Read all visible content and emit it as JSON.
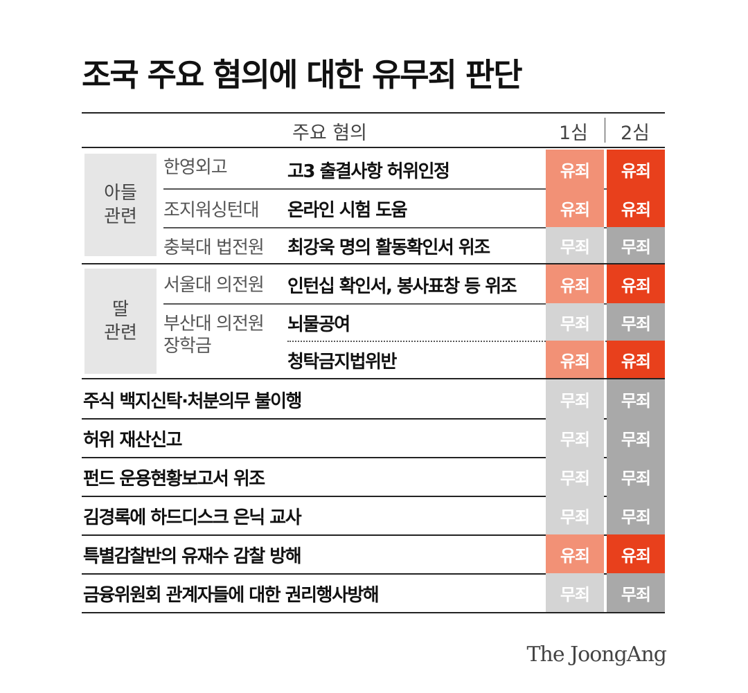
{
  "title": "조국 주요 혐의에 대한 유무죄 판단",
  "header": {
    "charges": "주요 혐의",
    "first_trial": "1심",
    "second_trial": "2심"
  },
  "groups": [
    {
      "label": "아들\n관련"
    },
    {
      "label": "딸\n관련"
    }
  ],
  "rows": [
    {
      "sub": "한영외고",
      "item": "고3 출결사항 허위인정",
      "first": "유죄",
      "second": "유죄"
    },
    {
      "sub": "조지워싱턴대",
      "item": "온라인 시험 도움",
      "first": "유죄",
      "second": "유죄"
    },
    {
      "sub": "충북대 법전원",
      "item": "최강욱 명의 활동확인서 위조",
      "first": "무죄",
      "second": "무죄"
    },
    {
      "sub": "서울대 의전원",
      "item": "인턴십 확인서, 봉사표창 등 위조",
      "first": "유죄",
      "second": "유죄"
    },
    {
      "sub": "부산대 의전원\n장학금",
      "item": "뇌물공여",
      "first": "무죄",
      "second": "무죄"
    },
    {
      "sub": "",
      "item": "청탁금지법위반",
      "first": "유죄",
      "second": "유죄"
    },
    {
      "sub": "",
      "item": "주식 백지신탁·처분의무 불이행",
      "first": "무죄",
      "second": "무죄"
    },
    {
      "sub": "",
      "item": "허위 재산신고",
      "first": "무죄",
      "second": "무죄"
    },
    {
      "sub": "",
      "item": "펀드 운용현황보고서 위조",
      "first": "무죄",
      "second": "무죄"
    },
    {
      "sub": "",
      "item": "김경록에 하드디스크 은닉 교사",
      "first": "무죄",
      "second": "무죄"
    },
    {
      "sub": "",
      "item": "특별감찰반의 유재수 감찰 방해",
      "first": "유죄",
      "second": "유죄"
    },
    {
      "sub": "",
      "item": "금융위원회 관계자들에 대한 권리행사방해",
      "first": "무죄",
      "second": "무죄"
    }
  ],
  "colors": {
    "first_guilty": "#f29176",
    "second_guilty": "#e8401c",
    "first_not_guilty": "#d4d4d4",
    "second_not_guilty": "#a9a9a9"
  },
  "logo": "The JoongAng"
}
